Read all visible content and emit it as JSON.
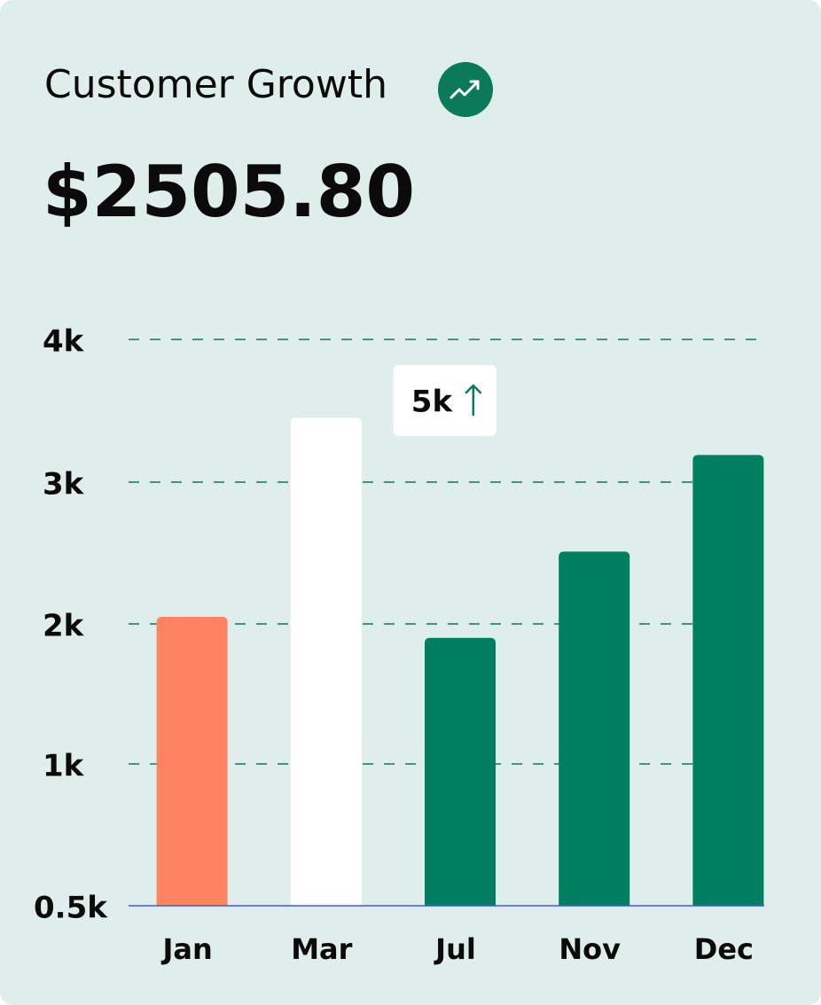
{
  "chart_data": {
    "type": "bar",
    "title": "Customer Growth",
    "headline": "$2505.80",
    "categories": [
      "Jan",
      "Mar",
      "Jul",
      "Nov",
      "Dec"
    ],
    "values": [
      2050,
      3450,
      1900,
      2510,
      3190
    ],
    "colors": [
      "#ff8360",
      "#ffffff",
      "#008060",
      "#008060",
      "#008060"
    ],
    "ylim": [
      500,
      4000
    ],
    "yticks": [
      {
        "value": 500,
        "label": "0.5k"
      },
      {
        "value": 1000,
        "label": "1k"
      },
      {
        "value": 2000,
        "label": "2k"
      },
      {
        "value": 3000,
        "label": "3k"
      },
      {
        "value": 4000,
        "label": "4k"
      }
    ],
    "grid": true,
    "annotation": {
      "text": "5k",
      "category_index": 1
    }
  }
}
